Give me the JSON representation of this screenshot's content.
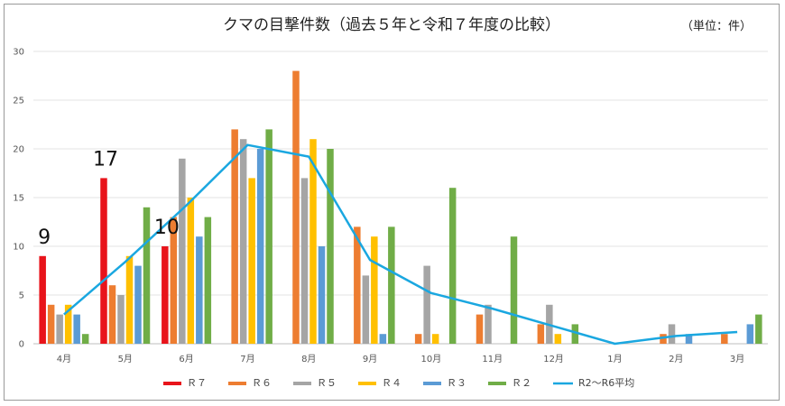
{
  "chart_data": {
    "type": "bar",
    "title": "クマの目撃件数（過去５年と令和７年度の比較）",
    "unit": "（単位：件）",
    "categories": [
      "4月",
      "5月",
      "6月",
      "7月",
      "8月",
      "9月",
      "10月",
      "11月",
      "12月",
      "1月",
      "2月",
      "3月"
    ],
    "ylim": [
      0,
      30
    ],
    "yticks": [
      "0",
      "5",
      "10",
      "15",
      "20",
      "25",
      "30"
    ],
    "grid": true,
    "legend_position": "bottom",
    "series": [
      {
        "name": "Ｒ７",
        "color": "#e8141b",
        "values": [
          9,
          17,
          10,
          null,
          null,
          null,
          null,
          null,
          null,
          null,
          null,
          null
        ]
      },
      {
        "name": "Ｒ６",
        "color": "#ed7d31",
        "values": [
          4,
          6,
          13,
          22,
          28,
          12,
          1,
          3,
          2,
          0,
          1,
          1
        ]
      },
      {
        "name": "Ｒ５",
        "color": "#a5a5a5",
        "values": [
          3,
          5,
          19,
          21,
          17,
          7,
          8,
          4,
          4,
          0,
          2,
          0
        ]
      },
      {
        "name": "Ｒ４",
        "color": "#ffc000",
        "values": [
          4,
          9,
          15,
          17,
          21,
          11,
          1,
          0,
          1,
          0,
          0,
          0
        ]
      },
      {
        "name": "Ｒ３",
        "color": "#5b9bd5",
        "values": [
          3,
          8,
          11,
          20,
          10,
          1,
          0,
          0,
          0,
          0,
          1,
          2
        ]
      },
      {
        "name": "Ｒ２",
        "color": "#70ad47",
        "values": [
          1,
          14,
          13,
          22,
          20,
          12,
          16,
          11,
          2,
          0,
          0,
          3
        ]
      }
    ],
    "line": {
      "name": "R2～R6平均",
      "color": "#1aa7e0",
      "values": [
        3,
        8.4,
        14.2,
        20.4,
        19.2,
        8.6,
        5.2,
        3.6,
        1.8,
        0,
        0.8,
        1.2
      ]
    },
    "callouts": [
      {
        "category_index": 0,
        "text": "9"
      },
      {
        "category_index": 1,
        "text": "17"
      },
      {
        "category_index": 2,
        "text": "10"
      }
    ]
  }
}
